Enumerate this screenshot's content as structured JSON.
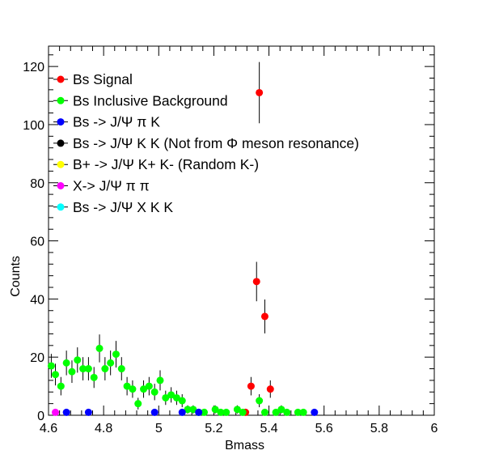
{
  "chart_data": {
    "type": "scatter",
    "title": "",
    "xlabel": "Bmass",
    "ylabel": "Counts",
    "xlim": [
      4.6,
      6.0
    ],
    "ylim": [
      0,
      127
    ],
    "x_ticks": [
      {
        "v": 4.6,
        "label": "4.6"
      },
      {
        "v": 4.8,
        "label": "4.8"
      },
      {
        "v": 5.0,
        "label": "5"
      },
      {
        "v": 5.2,
        "label": "5.2"
      },
      {
        "v": 5.4,
        "label": "5.4"
      },
      {
        "v": 5.6,
        "label": "5.6"
      },
      {
        "v": 5.8,
        "label": "5.8"
      },
      {
        "v": 6.0,
        "label": "6"
      }
    ],
    "y_ticks": [
      {
        "v": 0,
        "label": "0"
      },
      {
        "v": 20,
        "label": "20"
      },
      {
        "v": 40,
        "label": "40"
      },
      {
        "v": 60,
        "label": "60"
      },
      {
        "v": 80,
        "label": "80"
      },
      {
        "v": 100,
        "label": "100"
      },
      {
        "v": 120,
        "label": "120"
      }
    ],
    "grid": false,
    "legend_position": "top-left",
    "series": [
      {
        "name": "Bs Signal",
        "color": "#ff0000",
        "points": [
          {
            "x": 5.315,
            "y": 1
          },
          {
            "x": 5.335,
            "y": 10
          },
          {
            "x": 5.355,
            "y": 46
          },
          {
            "x": 5.365,
            "y": 111
          },
          {
            "x": 5.385,
            "y": 34
          },
          {
            "x": 5.405,
            "y": 9
          }
        ]
      },
      {
        "name": "Bs Inclusive Background",
        "color": "#00ff00",
        "points": [
          {
            "x": 4.61,
            "y": 17
          },
          {
            "x": 4.625,
            "y": 14
          },
          {
            "x": 4.645,
            "y": 10
          },
          {
            "x": 4.665,
            "y": 18
          },
          {
            "x": 4.685,
            "y": 15
          },
          {
            "x": 4.705,
            "y": 19
          },
          {
            "x": 4.725,
            "y": 16
          },
          {
            "x": 4.745,
            "y": 16
          },
          {
            "x": 4.765,
            "y": 13
          },
          {
            "x": 4.785,
            "y": 23
          },
          {
            "x": 4.805,
            "y": 16
          },
          {
            "x": 4.825,
            "y": 18
          },
          {
            "x": 4.845,
            "y": 21
          },
          {
            "x": 4.865,
            "y": 16
          },
          {
            "x": 4.885,
            "y": 10
          },
          {
            "x": 4.905,
            "y": 9
          },
          {
            "x": 4.925,
            "y": 4
          },
          {
            "x": 4.945,
            "y": 9
          },
          {
            "x": 4.965,
            "y": 10
          },
          {
            "x": 4.985,
            "y": 8
          },
          {
            "x": 5.005,
            "y": 12
          },
          {
            "x": 5.025,
            "y": 6
          },
          {
            "x": 5.045,
            "y": 7
          },
          {
            "x": 5.065,
            "y": 6
          },
          {
            "x": 5.085,
            "y": 5
          },
          {
            "x": 5.105,
            "y": 2
          },
          {
            "x": 5.125,
            "y": 2
          },
          {
            "x": 5.145,
            "y": 1
          },
          {
            "x": 5.165,
            "y": 1
          },
          {
            "x": 5.205,
            "y": 2
          },
          {
            "x": 5.225,
            "y": 1
          },
          {
            "x": 5.245,
            "y": 1
          },
          {
            "x": 5.285,
            "y": 2
          },
          {
            "x": 5.305,
            "y": 1
          },
          {
            "x": 5.365,
            "y": 5
          },
          {
            "x": 5.385,
            "y": 1
          },
          {
            "x": 5.425,
            "y": 1
          },
          {
            "x": 5.445,
            "y": 2
          },
          {
            "x": 5.465,
            "y": 1
          },
          {
            "x": 5.505,
            "y": 1
          },
          {
            "x": 5.525,
            "y": 1
          }
        ]
      },
      {
        "name": "Bs -> J/Ψ  π K",
        "color": "#0000ff",
        "points": [
          {
            "x": 4.665,
            "y": 1
          },
          {
            "x": 4.745,
            "y": 1
          },
          {
            "x": 4.985,
            "y": 1
          },
          {
            "x": 5.085,
            "y": 1
          },
          {
            "x": 5.145,
            "y": 1
          },
          {
            "x": 5.565,
            "y": 1
          }
        ]
      },
      {
        "name": "Bs -> J/Ψ  K K (Not from Φ meson resonance)",
        "color": "#000000",
        "points": []
      },
      {
        "name": "B+ ->  J/Ψ  K+ K- (Random K-)",
        "color": "#ffff00",
        "points": []
      },
      {
        "name": "X-> J/Ψ π π",
        "color": "#ff00ff",
        "points": [
          {
            "x": 4.625,
            "y": 1
          }
        ]
      },
      {
        "name": "Bs -> J/Ψ X K K",
        "color": "#00ffff",
        "points": []
      }
    ]
  }
}
